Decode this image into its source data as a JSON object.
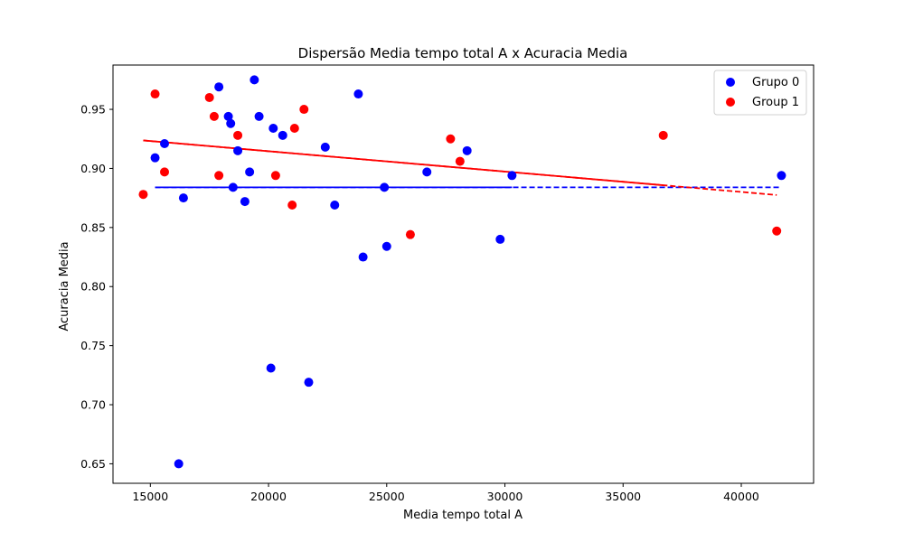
{
  "chart_data": {
    "type": "scatter",
    "title": "Dispersão Media tempo total A x Acuracia Media",
    "xlabel": "Media tempo total A",
    "ylabel": "Acuracia Media",
    "xlim": [
      13420,
      43060
    ],
    "ylim": [
      0.6335,
      0.9875
    ],
    "xticks": [
      15000,
      20000,
      25000,
      30000,
      35000,
      40000
    ],
    "yticks": [
      0.65,
      0.7,
      0.75,
      0.8,
      0.85,
      0.9,
      0.95
    ],
    "ytick_labels": [
      "0.65",
      "0.70",
      "0.75",
      "0.80",
      "0.85",
      "0.90",
      "0.95"
    ],
    "grid": false,
    "legend_position": "top-right",
    "series": [
      {
        "name": "Grupo 0",
        "color": "#0000ff",
        "points": [
          [
            15200,
            0.909
          ],
          [
            15600,
            0.921
          ],
          [
            16200,
            0.65
          ],
          [
            16400,
            0.875
          ],
          [
            17900,
            0.969
          ],
          [
            18300,
            0.944
          ],
          [
            18400,
            0.938
          ],
          [
            18500,
            0.884
          ],
          [
            18700,
            0.915
          ],
          [
            19000,
            0.872
          ],
          [
            19200,
            0.897
          ],
          [
            19400,
            0.975
          ],
          [
            19600,
            0.944
          ],
          [
            20100,
            0.731
          ],
          [
            20200,
            0.934
          ],
          [
            20600,
            0.928
          ],
          [
            21700,
            0.719
          ],
          [
            22400,
            0.918
          ],
          [
            22800,
            0.869
          ],
          [
            23800,
            0.963
          ],
          [
            24000,
            0.825
          ],
          [
            24900,
            0.884
          ],
          [
            25000,
            0.834
          ],
          [
            26700,
            0.897
          ],
          [
            28400,
            0.915
          ],
          [
            29800,
            0.84
          ],
          [
            30300,
            0.894
          ],
          [
            41700,
            0.894
          ]
        ],
        "trend": [
          [
            15200,
            0.884
          ],
          [
            41700,
            0.884
          ]
        ],
        "trend_solid_end_x": 30300
      },
      {
        "name": "Group 1",
        "color": "#ff0000",
        "points": [
          [
            14700,
            0.878
          ],
          [
            15200,
            0.963
          ],
          [
            15600,
            0.897
          ],
          [
            17500,
            0.96
          ],
          [
            17700,
            0.944
          ],
          [
            17900,
            0.894
          ],
          [
            18700,
            0.928
          ],
          [
            20300,
            0.894
          ],
          [
            21000,
            0.869
          ],
          [
            21100,
            0.934
          ],
          [
            21500,
            0.95
          ],
          [
            26000,
            0.844
          ],
          [
            27700,
            0.925
          ],
          [
            28100,
            0.906
          ],
          [
            36700,
            0.928
          ],
          [
            41500,
            0.847
          ]
        ],
        "trend": [
          [
            14700,
            0.9237
          ],
          [
            41500,
            0.8775
          ]
        ],
        "trend_solid_end_x": 36700
      }
    ]
  }
}
